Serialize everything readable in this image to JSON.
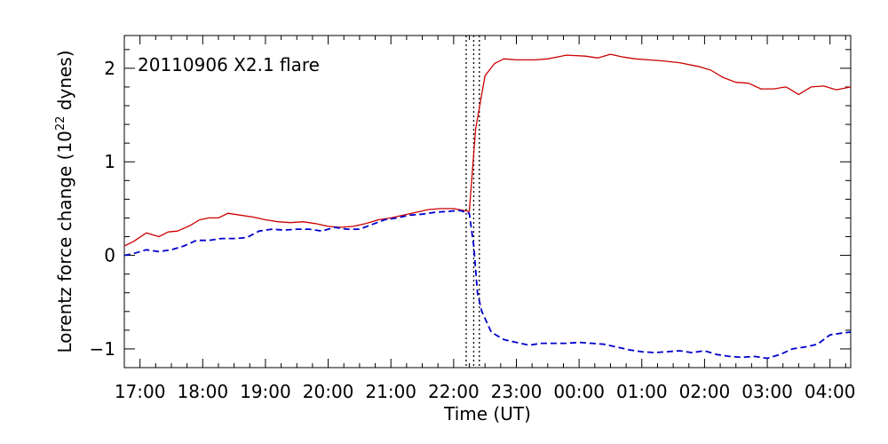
{
  "colors": {
    "background": "#ffffff",
    "axis": "#000000",
    "series_solid": "#cc0000",
    "series_dashed": "#0000cc",
    "marker_lines": "#000000"
  },
  "chart_data": {
    "type": "line",
    "annotation": "20110906 X2.1 flare",
    "xlabel": "Time (UT)",
    "ylabel_main": "Lorentz force change (10",
    "ylabel_exponent": "22",
    "ylabel_unit": " dynes)",
    "x_unit": "hours since 2011-09-06 00:00 UT",
    "xlim": [
      16.75,
      28.33
    ],
    "ylim": [
      -1.2,
      2.35
    ],
    "x_ticks": [
      {
        "value": 17,
        "label": "17:00"
      },
      {
        "value": 18,
        "label": "18:00"
      },
      {
        "value": 19,
        "label": "19:00"
      },
      {
        "value": 20,
        "label": "20:00"
      },
      {
        "value": 21,
        "label": "21:00"
      },
      {
        "value": 22,
        "label": "22:00"
      },
      {
        "value": 23,
        "label": "23:00"
      },
      {
        "value": 24,
        "label": "00:00"
      },
      {
        "value": 25,
        "label": "01:00"
      },
      {
        "value": 26,
        "label": "02:00"
      },
      {
        "value": 27,
        "label": "03:00"
      },
      {
        "value": 28,
        "label": "04:00"
      }
    ],
    "y_ticks": [
      {
        "value": -1,
        "label": "−1"
      },
      {
        "value": 0,
        "label": "0"
      },
      {
        "value": 1,
        "label": "1"
      },
      {
        "value": 2,
        "label": "2"
      }
    ],
    "vertical_markers": [
      22.2,
      22.32,
      22.41
    ],
    "series": [
      {
        "style": "solid",
        "color": "#cc0000",
        "x": [
          16.75,
          16.9,
          17.1,
          17.2,
          17.3,
          17.45,
          17.6,
          17.8,
          17.95,
          18.1,
          18.25,
          18.4,
          18.6,
          18.8,
          19.0,
          19.2,
          19.4,
          19.6,
          19.8,
          20.0,
          20.2,
          20.4,
          20.6,
          20.8,
          21.0,
          21.2,
          21.4,
          21.6,
          21.8,
          22.0,
          22.25,
          22.35,
          22.5,
          22.65,
          22.8,
          23.0,
          23.3,
          23.5,
          23.8,
          24.1,
          24.3,
          24.5,
          24.7,
          24.9,
          25.1,
          25.3,
          25.6,
          25.9,
          26.1,
          26.3,
          26.5,
          26.7,
          26.9,
          27.1,
          27.3,
          27.5,
          27.7,
          27.9,
          28.1,
          28.33
        ],
        "y": [
          0.1,
          0.15,
          0.24,
          0.22,
          0.2,
          0.25,
          0.26,
          0.32,
          0.38,
          0.4,
          0.4,
          0.45,
          0.43,
          0.41,
          0.38,
          0.36,
          0.35,
          0.36,
          0.34,
          0.31,
          0.3,
          0.31,
          0.34,
          0.38,
          0.4,
          0.43,
          0.46,
          0.49,
          0.5,
          0.5,
          0.47,
          1.35,
          1.92,
          2.05,
          2.1,
          2.09,
          2.09,
          2.1,
          2.14,
          2.13,
          2.11,
          2.15,
          2.12,
          2.1,
          2.09,
          2.08,
          2.06,
          2.02,
          1.98,
          1.9,
          1.85,
          1.84,
          1.78,
          1.78,
          1.8,
          1.72,
          1.8,
          1.81,
          1.77,
          1.8
        ]
      },
      {
        "style": "dashed",
        "color": "#0000cc",
        "x": [
          16.75,
          16.9,
          17.1,
          17.3,
          17.5,
          17.7,
          17.9,
          18.1,
          18.3,
          18.5,
          18.7,
          18.9,
          19.1,
          19.3,
          19.5,
          19.7,
          19.9,
          20.1,
          20.3,
          20.5,
          20.7,
          20.9,
          21.1,
          21.3,
          21.5,
          21.7,
          21.9,
          22.1,
          22.25,
          22.32,
          22.38,
          22.45,
          22.6,
          22.8,
          23.0,
          23.2,
          23.4,
          23.6,
          23.8,
          24.0,
          24.2,
          24.4,
          24.6,
          24.8,
          25.0,
          25.2,
          25.4,
          25.6,
          25.8,
          26.0,
          26.2,
          26.4,
          26.6,
          26.8,
          27.0,
          27.2,
          27.4,
          27.6,
          27.8,
          28.0,
          28.2,
          28.33
        ],
        "y": [
          0.0,
          0.02,
          0.06,
          0.04,
          0.06,
          0.1,
          0.16,
          0.16,
          0.18,
          0.18,
          0.19,
          0.26,
          0.28,
          0.27,
          0.28,
          0.28,
          0.26,
          0.3,
          0.28,
          0.28,
          0.33,
          0.38,
          0.4,
          0.43,
          0.44,
          0.46,
          0.47,
          0.48,
          0.45,
          0.1,
          -0.4,
          -0.6,
          -0.82,
          -0.9,
          -0.93,
          -0.96,
          -0.94,
          -0.94,
          -0.94,
          -0.93,
          -0.94,
          -0.95,
          -0.98,
          -1.01,
          -1.03,
          -1.04,
          -1.03,
          -1.02,
          -1.04,
          -1.02,
          -1.06,
          -1.08,
          -1.09,
          -1.08,
          -1.1,
          -1.06,
          -1.0,
          -0.98,
          -0.95,
          -0.85,
          -0.83,
          -0.82
        ]
      }
    ]
  }
}
